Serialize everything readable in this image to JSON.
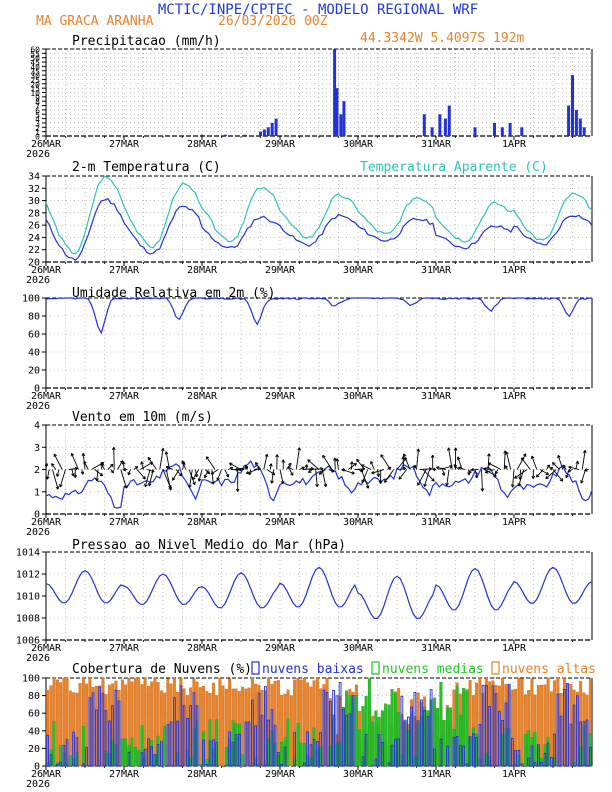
{
  "header": {
    "title": "MCTIC/INPE/CPTEC - MODELO REGIONAL WRF",
    "location": "MA GRACA ARANHA",
    "run": "26/03/2026 00Z",
    "coords": "44.3342W 5.4097S 192m"
  },
  "colors": {
    "title": "#1f3ad8",
    "orange": "#e8822a",
    "blue": "#2332d6",
    "cyan": "#2ec4b6",
    "green": "#22c322",
    "arrow": "#000000",
    "grid": "#999999"
  },
  "x_ticks": [
    "26MAR",
    "27MAR",
    "28MAR",
    "29MAR",
    "30MAR",
    "31MAR",
    "1APR"
  ],
  "x_year": "2026",
  "chart_data": [
    {
      "type": "bar",
      "title": "Precipitacao (mm/h)",
      "ylim": [
        0,
        60
      ],
      "y_tick_labels": [
        "0",
        "1",
        "2",
        "3",
        "4",
        "5",
        "6",
        "7",
        "8",
        "9",
        "10",
        "15",
        "20",
        "25",
        "30",
        "35",
        "40",
        "45",
        "50",
        "55",
        "60"
      ],
      "series": [
        {
          "name": "precip",
          "values": [
            [
              2.0,
              0.3
            ],
            [
              2.3,
              0.3
            ],
            [
              2.55,
              0.3
            ],
            [
              2.75,
              1
            ],
            [
              2.8,
              1.5
            ],
            [
              2.85,
              2
            ],
            [
              2.9,
              3
            ],
            [
              2.95,
              4
            ],
            [
              3.7,
              60
            ],
            [
              3.73,
              15
            ],
            [
              3.78,
              5
            ],
            [
              3.82,
              8
            ],
            [
              4.85,
              5
            ],
            [
              4.95,
              2
            ],
            [
              5.05,
              5
            ],
            [
              5.12,
              4
            ],
            [
              5.17,
              7
            ],
            [
              5.5,
              2
            ],
            [
              5.75,
              3
            ],
            [
              5.85,
              2
            ],
            [
              5.95,
              3
            ],
            [
              6.1,
              2
            ],
            [
              6.7,
              7
            ],
            [
              6.75,
              30
            ],
            [
              6.8,
              6
            ],
            [
              6.85,
              4
            ],
            [
              6.9,
              2
            ]
          ]
        }
      ]
    },
    {
      "type": "line",
      "title": "2-m Temperatura (C)",
      "legend": "Temperatura Aparente (C)",
      "ylim": [
        20,
        34
      ],
      "y_ticks": [
        20,
        22,
        24,
        26,
        28,
        30,
        32,
        34
      ],
      "series": [
        {
          "name": "Temperatura",
          "color": "blue",
          "min": [
            20.4,
            21.5,
            22.3,
            22.8,
            23.5,
            22.4,
            22.8
          ],
          "max": [
            30.2,
            29.0,
            27.3,
            27.5,
            27.0,
            25.8,
            27.7
          ]
        },
        {
          "name": "Temperatura Aparente",
          "color": "cyan",
          "min": [
            21.5,
            22.5,
            23.5,
            24.0,
            24.5,
            23.5,
            23.5
          ],
          "max": [
            33.8,
            32.6,
            32.0,
            30.8,
            30.5,
            29.5,
            31.0
          ]
        }
      ]
    },
    {
      "type": "line",
      "title": "Umidade Relativa em 2m (%)",
      "ylim": [
        0,
        100
      ],
      "y_ticks": [
        0,
        20,
        40,
        60,
        80,
        100
      ],
      "series": [
        {
          "name": "umidade",
          "color": "blue",
          "min": [
            62,
            75,
            72,
            90,
            92,
            86,
            80
          ],
          "max": [
            100,
            100,
            100,
            100,
            100,
            100,
            100
          ]
        }
      ]
    },
    {
      "type": "line",
      "title": "Vento em 10m (m/s)",
      "ylim": [
        0,
        4
      ],
      "y_ticks": [
        0,
        1,
        2,
        3,
        4
      ],
      "series": [
        {
          "name": "vento",
          "color": "blue",
          "min": [
            0.2,
            0.7,
            0.7,
            1.0,
            0.9,
            0.8,
            0.5
          ],
          "max": [
            1.6,
            2.2,
            2.3,
            2.0,
            2.2,
            2.1,
            2.0
          ]
        }
      ]
    },
    {
      "type": "line",
      "title": "Pressao ao Nivel Medio do Mar (hPa)",
      "ylim": [
        1006,
        1014
      ],
      "y_ticks": [
        1006,
        1008,
        1010,
        1012,
        1014
      ],
      "series": [
        {
          "name": "pressao",
          "color": "blue",
          "min": [
            1008.8,
            1008.7,
            1008.3,
            1008.3,
            1007.2,
            1008.0,
            1008.7
          ],
          "max": [
            1012.3,
            1012.0,
            1012.1,
            1012.6,
            1011.8,
            1012.5,
            1012.6
          ]
        }
      ]
    },
    {
      "type": "bar",
      "title": "Cobertura de Nuvens (%)",
      "ylim": [
        0,
        100
      ],
      "y_ticks": [
        0,
        20,
        40,
        60,
        80,
        100
      ],
      "legend": [
        "nuvens baixas",
        "nuvens medias",
        "nuvens altas"
      ],
      "series": [
        {
          "name": "nuvens baixas",
          "color": "blue"
        },
        {
          "name": "nuvens medias",
          "color": "green"
        },
        {
          "name": "nuvens altas",
          "color": "orange"
        }
      ]
    }
  ]
}
